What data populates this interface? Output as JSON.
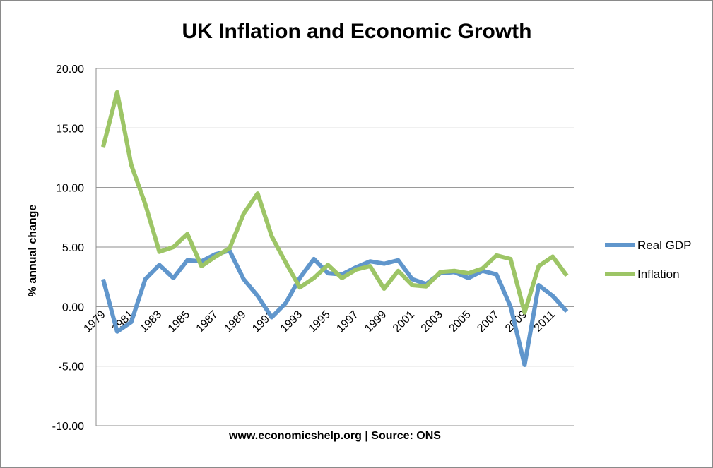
{
  "chart_data": {
    "type": "line",
    "title": "UK Inflation and Economic Growth",
    "xlabel": "www.economicshelp.org | Source: ONS",
    "ylabel": "% annual change",
    "ylim": [
      -10,
      20
    ],
    "yticks": [
      "-10.00",
      "-5.00",
      "0.00",
      "5.00",
      "10.00",
      "15.00",
      "20.00"
    ],
    "xtick_labels": [
      "1979",
      "1981",
      "1983",
      "1985",
      "1987",
      "1989",
      "1991",
      "1993",
      "1995",
      "1997",
      "1999",
      "2001",
      "2003",
      "2005",
      "2007",
      "2009",
      "2011"
    ],
    "x": [
      1979,
      1980,
      1981,
      1982,
      1983,
      1984,
      1985,
      1986,
      1987,
      1988,
      1989,
      1990,
      1991,
      1992,
      1993,
      1994,
      1995,
      1996,
      1997,
      1998,
      1999,
      2000,
      2001,
      2002,
      2003,
      2004,
      2005,
      2006,
      2007,
      2008,
      2009,
      2010,
      2011,
      2012
    ],
    "grid": true,
    "legend_position": "right",
    "series": [
      {
        "name": "Real GDP",
        "color": "#6096cc",
        "values": [
          2.3,
          -2.1,
          -1.3,
          2.3,
          3.5,
          2.4,
          3.9,
          3.8,
          4.4,
          4.7,
          2.3,
          0.9,
          -0.9,
          0.3,
          2.4,
          4.0,
          2.8,
          2.7,
          3.3,
          3.8,
          3.6,
          3.9,
          2.3,
          1.9,
          2.8,
          2.9,
          2.4,
          3.0,
          2.7,
          0.0,
          -4.9,
          1.8,
          0.9,
          -0.4
        ]
      },
      {
        "name": "Inflation",
        "color": "#9dc566",
        "values": [
          13.4,
          18.0,
          11.9,
          8.6,
          4.6,
          5.0,
          6.1,
          3.4,
          4.2,
          4.9,
          7.8,
          9.5,
          5.9,
          3.7,
          1.6,
          2.4,
          3.5,
          2.4,
          3.1,
          3.4,
          1.5,
          3.0,
          1.8,
          1.7,
          2.9,
          3.0,
          2.8,
          3.2,
          4.3,
          4.0,
          -0.5,
          3.4,
          4.2,
          2.6
        ]
      }
    ]
  }
}
